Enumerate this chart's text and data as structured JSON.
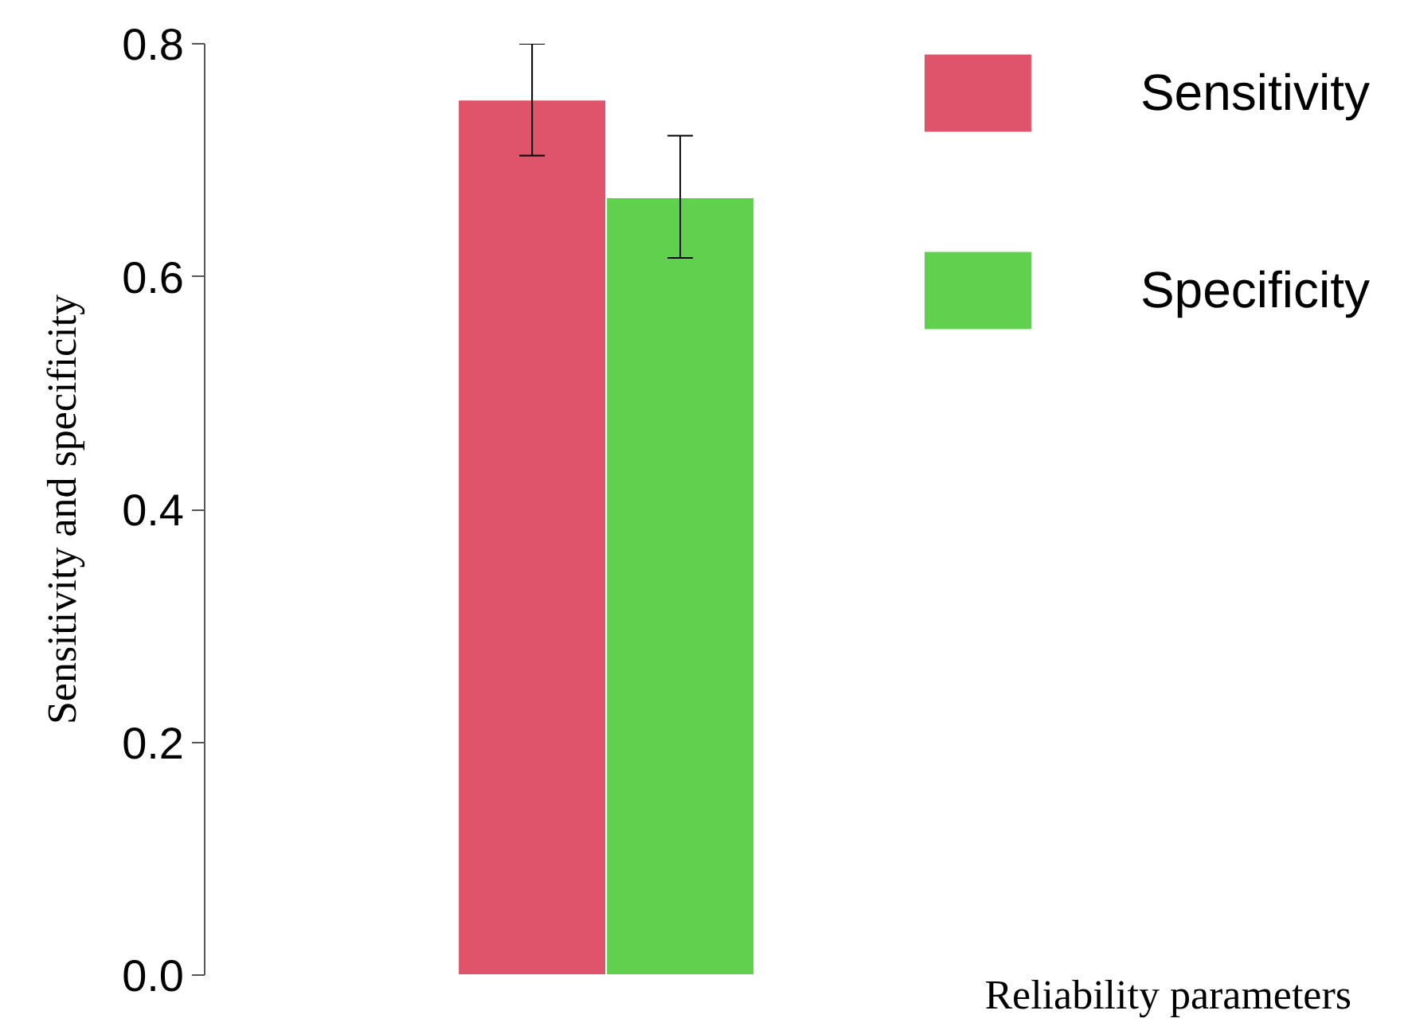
{
  "chart_data": {
    "type": "bar",
    "annotations": [
      "Reliability parameters"
    ],
    "ylabel": "Sensitivity and specificity",
    "categories": [
      null
    ],
    "series": [
      {
        "name": "Sensitivity",
        "color": "#df536b",
        "values": [
          0.752
        ],
        "errors": [
          [
            0.704,
            0.8
          ]
        ]
      },
      {
        "name": "Specificity",
        "color": "#61d04f",
        "values": [
          0.668
        ],
        "errors": [
          [
            0.616,
            0.721
          ]
        ]
      }
    ],
    "ylim": [
      0,
      0.8
    ],
    "yticks": [
      {
        "value": 0,
        "label": "0.0"
      },
      {
        "value": 0.2,
        "label": "0.2"
      },
      {
        "value": 0.4,
        "label": "0.4"
      },
      {
        "value": 0.6,
        "label": "0.6"
      },
      {
        "value": 0.8,
        "label": "0.8"
      }
    ],
    "grid": false,
    "legend": "top right",
    "tick_labels": "y"
  }
}
